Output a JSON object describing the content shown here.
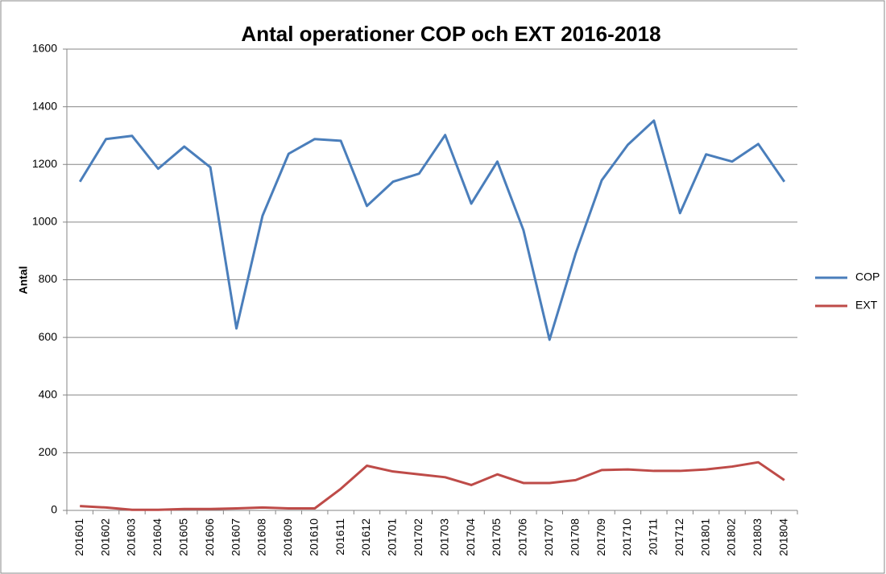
{
  "chart_data": {
    "type": "line",
    "title": "Antal operationer COP och EXT 2016-2018",
    "y_label": "Antal",
    "categories": [
      "201601",
      "201602",
      "201603",
      "201604",
      "201605",
      "201606",
      "201607",
      "201608",
      "201609",
      "201610",
      "201611",
      "201612",
      "201701",
      "201702",
      "201703",
      "201704",
      "201705",
      "201706",
      "201707",
      "201708",
      "201709",
      "201710",
      "201711",
      "201712",
      "201801",
      "201802",
      "201803",
      "201804"
    ],
    "series": [
      {
        "name": "COP",
        "color": "#4a7ebb",
        "values": [
          1140,
          1288,
          1299,
          1185,
          1262,
          1190,
          631,
          1022,
          1237,
          1288,
          1282,
          1056,
          1140,
          1168,
          1302,
          1064,
          1210,
          972,
          592,
          891,
          1145,
          1268,
          1352,
          1031,
          1235,
          1210,
          1271,
          1140
        ]
      },
      {
        "name": "EXT",
        "color": "#be4b48",
        "values": [
          15,
          10,
          2,
          2,
          5,
          5,
          7,
          10,
          7,
          7,
          75,
          155,
          135,
          125,
          115,
          88,
          125,
          95,
          95,
          105,
          140,
          142,
          137,
          137,
          142,
          152,
          167,
          105
        ]
      }
    ],
    "ylim": [
      0,
      1600
    ],
    "yticks": [
      0,
      200,
      400,
      600,
      800,
      1000,
      1200,
      1400,
      1600
    ],
    "grid": true,
    "legend": "right"
  }
}
